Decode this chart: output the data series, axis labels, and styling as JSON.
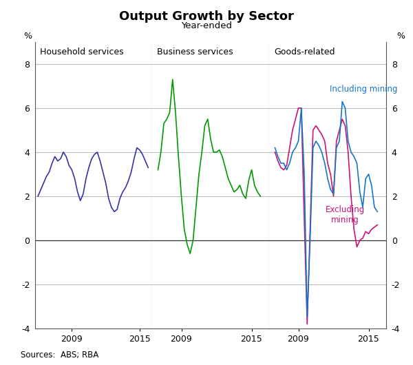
{
  "title": "Output Growth by Sector",
  "subtitle": "Year-ended",
  "source": "Sources:  ABS; RBA",
  "ylim": [
    -4,
    9
  ],
  "yticks": [
    -4,
    -2,
    0,
    2,
    4,
    6,
    8
  ],
  "panel_labels": [
    "Household services",
    "Business services",
    "Goods-related"
  ],
  "colors": {
    "household": "#3333aa",
    "business": "#009900",
    "goods_including": "#1177cc",
    "goods_excluding": "#cc1177"
  },
  "legend_including": "Including mining",
  "legend_excluding": "Excluding\nmining",
  "grid_color": "#bbbbbb",
  "spine_color": "#555555",
  "household": [
    2.0,
    2.3,
    2.6,
    2.9,
    3.1,
    3.5,
    3.8,
    3.6,
    3.7,
    4.0,
    3.8,
    3.4,
    3.2,
    2.8,
    2.2,
    1.8,
    2.1,
    2.8,
    3.3,
    3.7,
    3.9,
    4.0,
    3.6,
    3.1,
    2.6,
    1.9,
    1.5,
    1.3,
    1.4,
    1.9,
    2.2,
    2.4,
    2.7,
    3.1,
    3.7,
    4.2,
    4.1,
    3.9,
    3.6,
    3.3
  ],
  "household_dates": [
    2006.0,
    2006.25,
    2006.5,
    2006.75,
    2007.0,
    2007.25,
    2007.5,
    2007.75,
    2008.0,
    2008.25,
    2008.5,
    2008.75,
    2009.0,
    2009.25,
    2009.5,
    2009.75,
    2010.0,
    2010.25,
    2010.5,
    2010.75,
    2011.0,
    2011.25,
    2011.5,
    2011.75,
    2012.0,
    2012.25,
    2012.5,
    2012.75,
    2013.0,
    2013.25,
    2013.5,
    2013.75,
    2014.0,
    2014.25,
    2014.5,
    2014.75,
    2015.0,
    2015.25,
    2015.5,
    2015.75
  ],
  "business": [
    3.2,
    4.0,
    5.3,
    5.5,
    5.8,
    7.3,
    5.8,
    3.8,
    2.0,
    0.5,
    -0.2,
    -0.6,
    0.0,
    1.5,
    3.0,
    4.0,
    5.2,
    5.5,
    4.6,
    4.0,
    4.0,
    4.1,
    3.8,
    3.3,
    2.8,
    2.5,
    2.2,
    2.3,
    2.5,
    2.1,
    1.9,
    2.7,
    3.2,
    2.5,
    2.2,
    2.0
  ],
  "business_dates": [
    2007.0,
    2007.25,
    2007.5,
    2007.75,
    2008.0,
    2008.25,
    2008.5,
    2008.75,
    2009.0,
    2009.25,
    2009.5,
    2009.75,
    2010.0,
    2010.25,
    2010.5,
    2010.75,
    2011.0,
    2011.25,
    2011.5,
    2011.75,
    2012.0,
    2012.25,
    2012.5,
    2012.75,
    2013.0,
    2013.25,
    2013.5,
    2013.75,
    2014.0,
    2014.25,
    2014.5,
    2014.75,
    2015.0,
    2015.25,
    2015.5,
    2015.75
  ],
  "goods_inc": [
    4.2,
    3.8,
    3.5,
    3.5,
    3.2,
    3.5,
    4.0,
    4.2,
    4.5,
    6.0,
    3.0,
    -3.5,
    0.0,
    4.2,
    4.5,
    4.3,
    4.0,
    3.5,
    2.8,
    2.3,
    2.1,
    4.2,
    4.5,
    6.3,
    6.0,
    4.5,
    4.0,
    3.8,
    3.5,
    2.2,
    1.5,
    2.8,
    3.0,
    2.5,
    1.5,
    1.3
  ],
  "goods_exc": [
    4.0,
    3.6,
    3.3,
    3.2,
    3.4,
    4.2,
    5.0,
    5.5,
    6.0,
    6.0,
    1.0,
    -3.8,
    0.5,
    5.0,
    5.2,
    5.0,
    4.8,
    4.5,
    3.5,
    3.0,
    2.0,
    4.5,
    5.0,
    5.5,
    5.2,
    4.0,
    2.0,
    0.5,
    -0.3,
    0.0,
    0.1,
    0.4,
    0.3,
    0.5,
    0.6,
    0.7
  ],
  "goods_dates": [
    2007.0,
    2007.25,
    2007.5,
    2007.75,
    2008.0,
    2008.25,
    2008.5,
    2008.75,
    2009.0,
    2009.25,
    2009.5,
    2009.75,
    2010.0,
    2010.25,
    2010.5,
    2010.75,
    2011.0,
    2011.25,
    2011.5,
    2011.75,
    2012.0,
    2012.25,
    2012.5,
    2012.75,
    2013.0,
    2013.25,
    2013.5,
    2013.75,
    2014.0,
    2014.25,
    2014.5,
    2014.75,
    2015.0,
    2015.25,
    2015.5,
    2015.75
  ]
}
